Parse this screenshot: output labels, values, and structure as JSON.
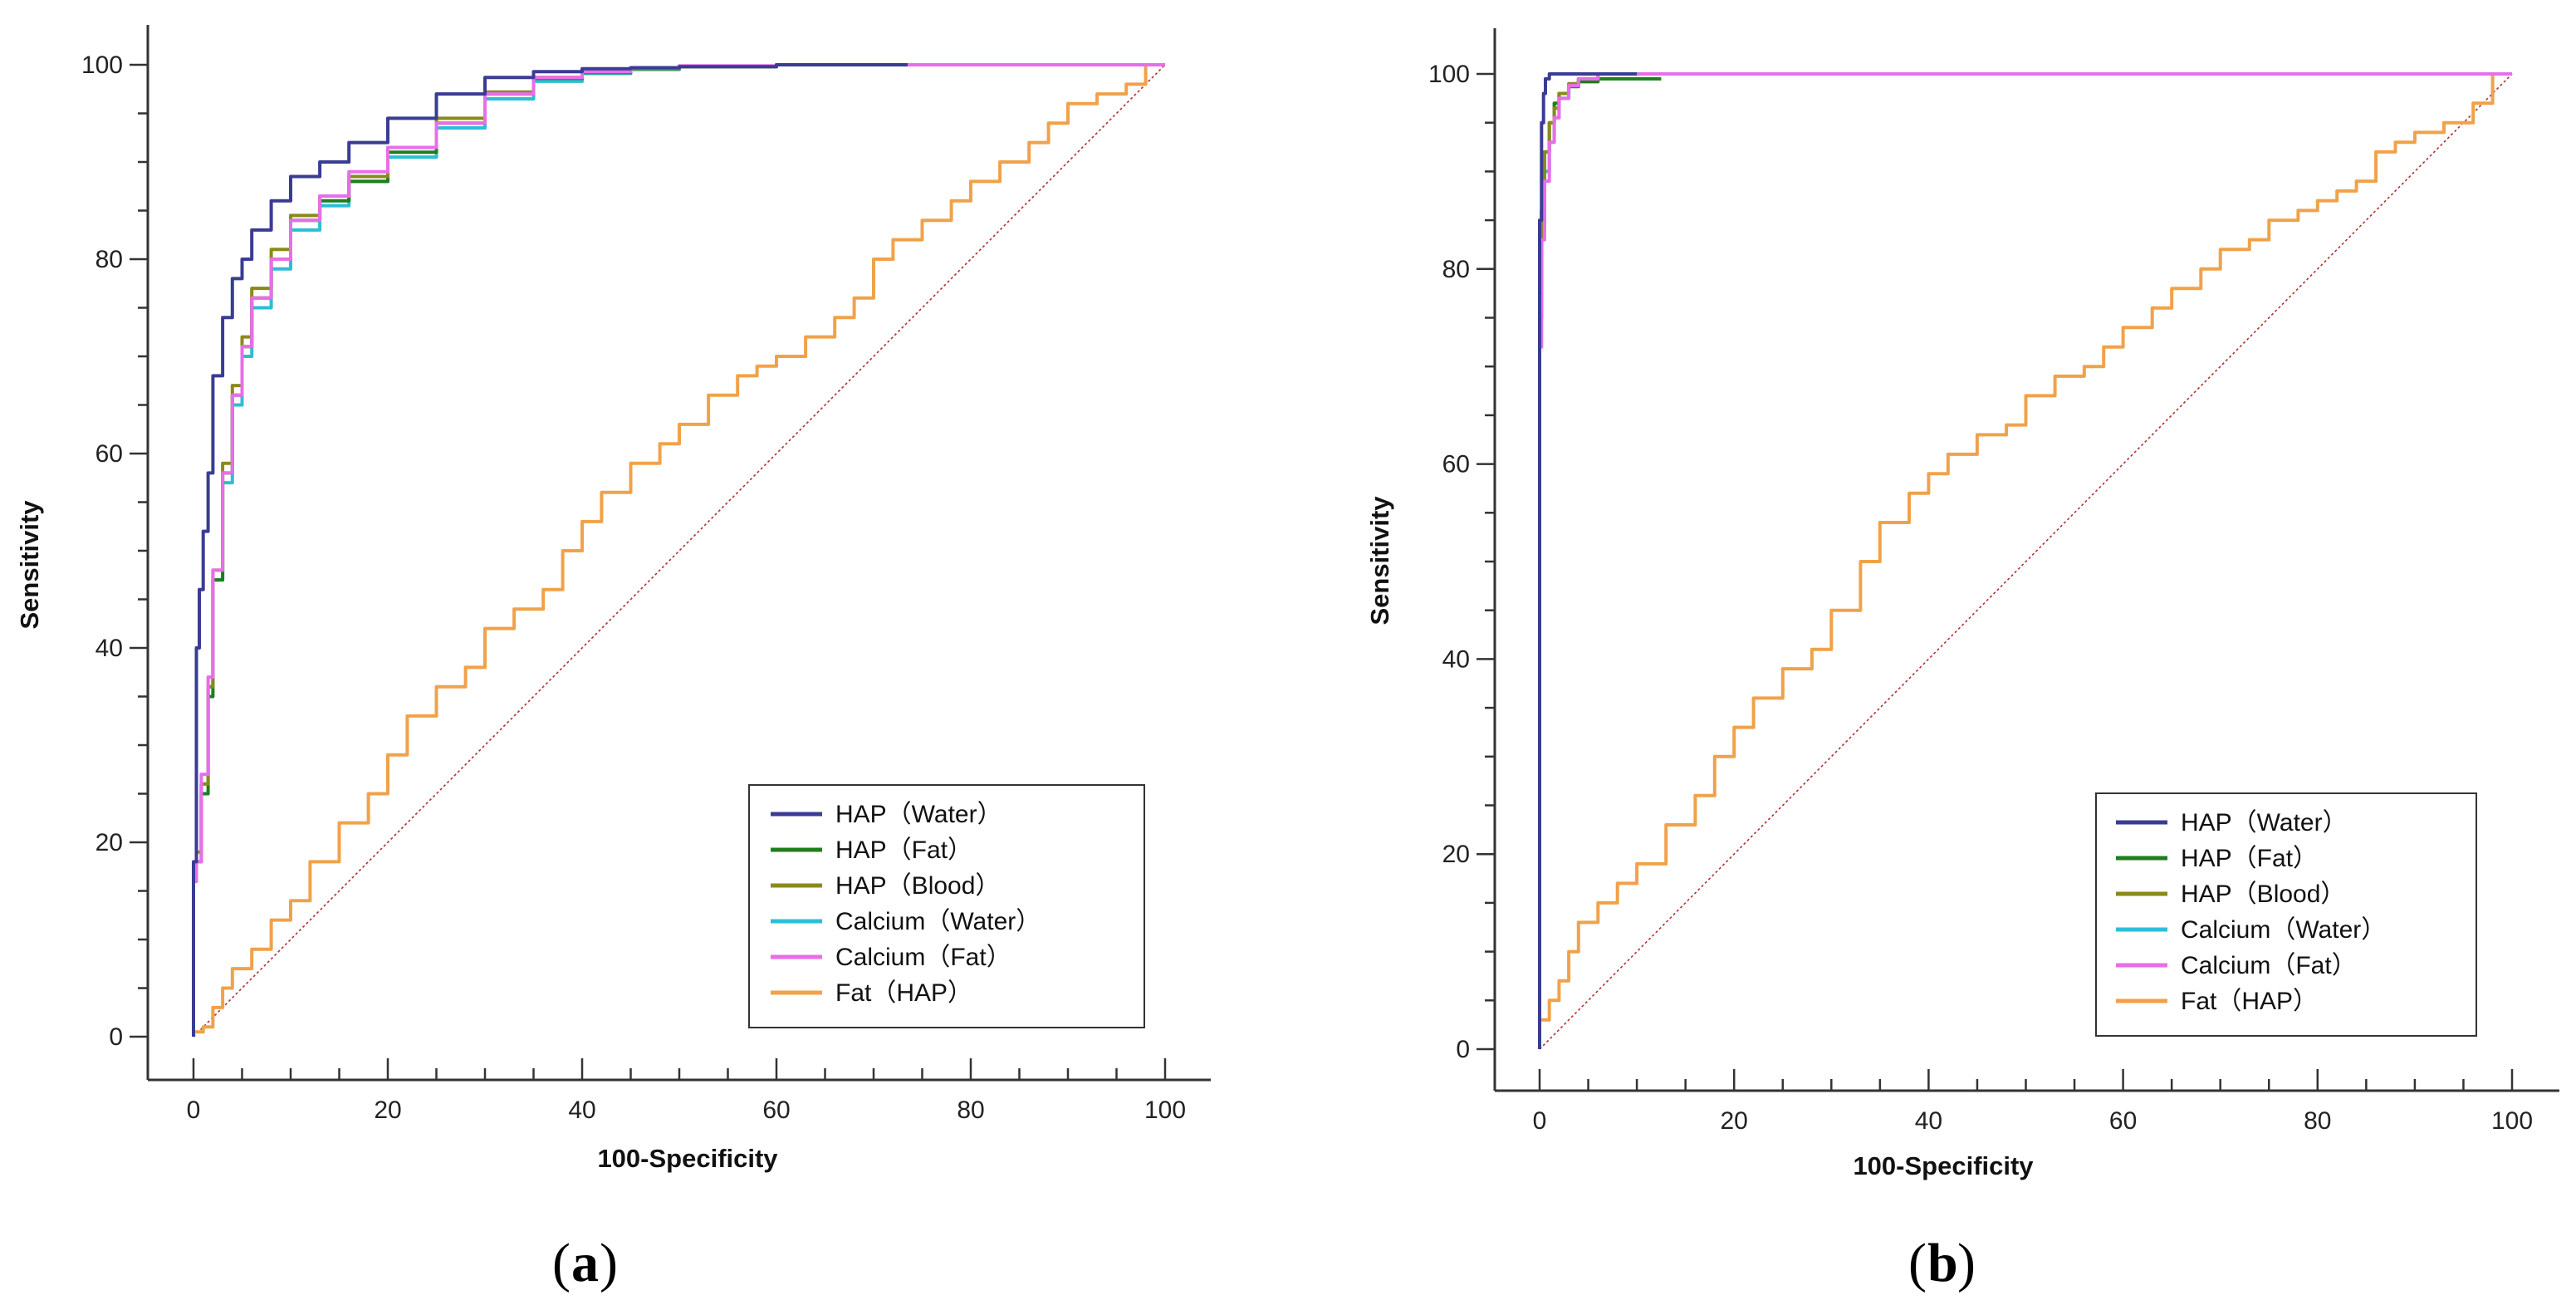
{
  "panels": [
    "a",
    "b"
  ],
  "colors": {
    "HAP_Water": "#3a3c94",
    "HAP_Fat": "#1e7f1e",
    "HAP_Blood": "#8a8a1a",
    "Calcium_Water": "#2bbfd6",
    "Calcium_Fat": "#e86ee8",
    "Fat_HAP": "#f0a24a",
    "diagonal": "#b03030",
    "axis": "#333333"
  },
  "chart_data": [
    {
      "type": "line",
      "panel_label": "a",
      "xlabel": "100-Specificity",
      "ylabel": "Sensitivity",
      "xlim": [
        0,
        100
      ],
      "ylim": [
        0,
        100
      ],
      "xticks": [
        "0",
        "20",
        "40",
        "60",
        "80",
        "100"
      ],
      "yticks": [
        "0",
        "20",
        "40",
        "60",
        "80",
        "100"
      ],
      "legend_position": "bottom-right",
      "reference_line": {
        "name": "chance",
        "x": [
          0,
          100
        ],
        "y": [
          0,
          100
        ]
      },
      "series": [
        {
          "name": "HAP（Water）",
          "key": "HAP_Water",
          "x": [
            0,
            0.3,
            0.6,
            1,
            1.5,
            2,
            3,
            4,
            5,
            6,
            8,
            10,
            13,
            16,
            20,
            25,
            30,
            35,
            40,
            45,
            50,
            60,
            73.5
          ],
          "y": [
            0,
            18,
            40,
            46,
            52,
            58,
            68,
            74,
            78,
            80,
            83,
            86,
            88.5,
            90,
            92,
            94.5,
            97,
            98.7,
            99.3,
            99.6,
            99.7,
            99.8,
            100
          ]
        },
        {
          "name": "HAP（Fat）",
          "key": "HAP_Fat",
          "x": [
            0,
            0.3,
            0.8,
            1.5,
            2,
            3,
            4,
            5,
            6,
            8,
            10,
            13,
            16,
            20,
            25,
            30,
            35,
            40,
            45,
            50,
            60,
            80,
            100
          ],
          "y": [
            0,
            16,
            18,
            25,
            35,
            47,
            58,
            66,
            71,
            76,
            80,
            84,
            86,
            88,
            91,
            94,
            97,
            98.6,
            99.2,
            99.6,
            99.8,
            100,
            100
          ]
        },
        {
          "name": "HAP（Blood）",
          "key": "HAP_Blood",
          "x": [
            0,
            0.3,
            0.8,
            1.5,
            2,
            3,
            4,
            5,
            6,
            8,
            10,
            13,
            16,
            20,
            25,
            30,
            35,
            40,
            45,
            50,
            60,
            80,
            100
          ],
          "y": [
            0,
            16,
            19,
            26,
            36,
            48,
            59,
            67,
            72,
            77,
            81,
            84.5,
            86.5,
            88.5,
            91.5,
            94.5,
            97.2,
            98.7,
            99.3,
            99.6,
            99.8,
            100,
            100
          ]
        },
        {
          "name": "Calcium（Water）",
          "key": "Calcium_Water",
          "x": [
            0,
            0.3,
            0.8,
            1.5,
            2,
            3,
            4,
            5,
            6,
            8,
            10,
            13,
            16,
            20,
            25,
            30,
            35,
            40,
            45,
            50,
            60,
            80,
            100
          ],
          "y": [
            0,
            16,
            18,
            26,
            36,
            47,
            57,
            65,
            70,
            75,
            79,
            83,
            85.5,
            88,
            90.5,
            93.5,
            96.5,
            98.3,
            99.1,
            99.5,
            99.8,
            100,
            100
          ]
        },
        {
          "name": "Calcium（Fat）",
          "key": "Calcium_Fat",
          "x": [
            0,
            0.3,
            0.8,
            1.5,
            2,
            3,
            4,
            5,
            6,
            8,
            10,
            13,
            16,
            20,
            25,
            30,
            35,
            40,
            45,
            50,
            60,
            80,
            100
          ],
          "y": [
            0,
            16,
            18,
            27,
            37,
            48,
            58,
            66,
            71,
            76,
            80,
            84,
            86.5,
            89,
            91.5,
            94,
            97,
            98.7,
            99.3,
            99.7,
            99.9,
            100,
            100
          ]
        },
        {
          "name": "Fat（HAP）",
          "key": "Fat_HAP",
          "x": [
            0,
            1,
            2,
            3,
            4,
            6,
            8,
            10,
            12,
            15,
            18,
            20,
            22,
            25,
            28,
            30,
            33,
            36,
            38,
            40,
            42,
            45,
            48,
            50,
            53,
            56,
            58,
            60,
            63,
            66,
            68,
            70,
            72,
            75,
            78,
            80,
            83,
            86,
            88,
            90,
            93,
            96,
            98,
            100
          ],
          "y": [
            0,
            0.5,
            1,
            3,
            5,
            7,
            9,
            12,
            14,
            18,
            22,
            25,
            29,
            33,
            36,
            38,
            42,
            44,
            46,
            50,
            53,
            56,
            59,
            61,
            63,
            66,
            68,
            69,
            70,
            72,
            74,
            76,
            80,
            82,
            84,
            86,
            88,
            90,
            92,
            94,
            96,
            97,
            98,
            100
          ]
        }
      ]
    },
    {
      "type": "line",
      "panel_label": "b",
      "xlabel": "100-Specificity",
      "ylabel": "Sensitivity",
      "xlim": [
        0,
        100
      ],
      "ylim": [
        0,
        100
      ],
      "xticks": [
        "0",
        "20",
        "40",
        "60",
        "80",
        "100"
      ],
      "yticks": [
        "0",
        "20",
        "40",
        "60",
        "80",
        "100"
      ],
      "legend_position": "bottom-right",
      "reference_line": {
        "name": "chance",
        "x": [
          0,
          100
        ],
        "y": [
          0,
          100
        ]
      },
      "series": [
        {
          "name": "HAP（Water）",
          "key": "HAP_Water",
          "x": [
            0,
            0.2,
            0.4,
            0.6,
            1,
            1.5,
            3,
            6,
            10
          ],
          "y": [
            0,
            85,
            95,
            98,
            99.5,
            100,
            100,
            100,
            100
          ]
        },
        {
          "name": "HAP（Fat）",
          "key": "HAP_Fat",
          "x": [
            0,
            0.2,
            0.5,
            1,
            1.5,
            2,
            3,
            4,
            6,
            9,
            12.5
          ],
          "y": [
            0,
            78,
            86,
            92,
            95,
            97,
            98,
            98.7,
            99.2,
            99.5,
            99.5
          ]
        },
        {
          "name": "HAP（Blood）",
          "key": "HAP_Blood",
          "x": [
            0,
            0.2,
            0.5,
            1,
            1.5,
            2,
            3,
            4,
            6,
            10,
            100
          ],
          "y": [
            0,
            78,
            86,
            92,
            95,
            96.5,
            98,
            99,
            99.5,
            100,
            100
          ]
        },
        {
          "name": "Calcium（Water）",
          "key": "Calcium_Water",
          "x": [
            0,
            0.2,
            0.5,
            1,
            1.5,
            2,
            3,
            4,
            6,
            10,
            100
          ],
          "y": [
            0,
            75,
            84,
            90,
            93,
            95.5,
            97.5,
            98.8,
            99.5,
            100,
            100
          ]
        },
        {
          "name": "Calcium（Fat）",
          "key": "Calcium_Fat",
          "x": [
            0,
            0.2,
            0.5,
            1,
            1.5,
            2,
            3,
            4,
            6,
            10,
            100
          ],
          "y": [
            0,
            72,
            83,
            89,
            93,
            95.5,
            97.5,
            98.8,
            99.5,
            100,
            100
          ]
        },
        {
          "name": "Fat（HAP）",
          "key": "Fat_HAP",
          "x": [
            0,
            1,
            2,
            3,
            4,
            6,
            8,
            10,
            13,
            16,
            18,
            20,
            22,
            25,
            28,
            30,
            33,
            35,
            38,
            40,
            42,
            45,
            48,
            50,
            53,
            56,
            58,
            60,
            63,
            65,
            68,
            70,
            73,
            75,
            78,
            80,
            82,
            84,
            86,
            88,
            90,
            93,
            96,
            98,
            100
          ],
          "y": [
            0,
            3,
            5,
            7,
            10,
            13,
            15,
            17,
            19,
            23,
            26,
            30,
            33,
            36,
            39,
            41,
            45,
            50,
            54,
            57,
            59,
            61,
            63,
            64,
            67,
            69,
            70,
            72,
            74,
            76,
            78,
            80,
            82,
            83,
            85,
            86,
            87,
            88,
            89,
            92,
            93,
            94,
            95,
            97,
            100
          ]
        }
      ]
    }
  ]
}
